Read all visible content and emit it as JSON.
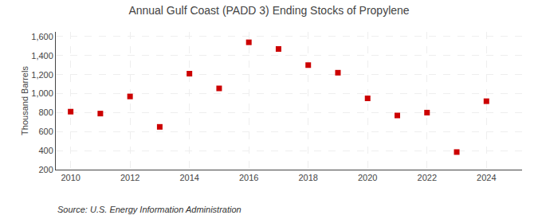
{
  "chart_data": {
    "type": "scatter",
    "title": "Annual Gulf Coast (PADD 3) Ending Stocks of Propylene",
    "ylabel": "Thousand Barrels",
    "annotations": [
      "Source: U.S. Energy Information Administration"
    ],
    "x": [
      2010,
      2011,
      2012,
      2013,
      2014,
      2015,
      2016,
      2017,
      2018,
      2019,
      2020,
      2021,
      2022,
      2023,
      2024
    ],
    "values": [
      810,
      790,
      970,
      650,
      1210,
      1055,
      1540,
      1470,
      1300,
      1220,
      950,
      770,
      800,
      385,
      920
    ],
    "color": "#cc0000",
    "marker": "square",
    "xlim": [
      2009.5,
      2025.2
    ],
    "ylim": [
      200,
      1650
    ],
    "xticks": [
      2010,
      2012,
      2014,
      2016,
      2018,
      2020,
      2022,
      2024
    ],
    "yticks": [
      200,
      400,
      600,
      800,
      {
        "value": 1000,
        "label": "1,000"
      },
      {
        "value": 1200,
        "label": "1,200"
      },
      {
        "value": 1400,
        "label": "1,400"
      },
      {
        "value": 1600,
        "label": "1,600"
      }
    ],
    "grid": true
  }
}
